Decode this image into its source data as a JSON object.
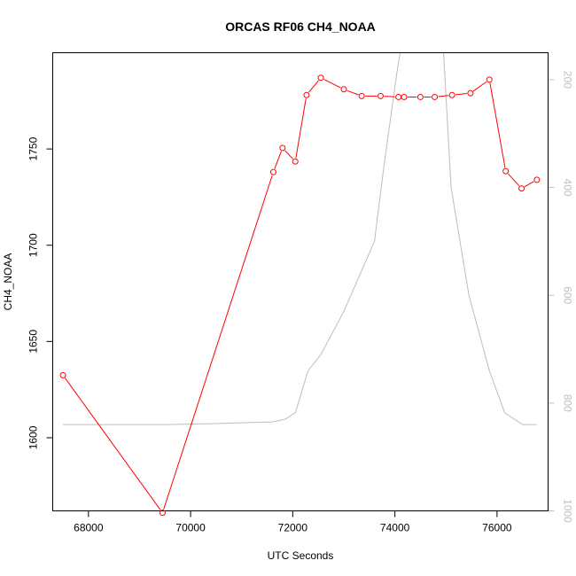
{
  "chart_data": {
    "type": "line",
    "title": "ORCAS RF06 CH4_NOAA",
    "xlabel": "UTC Seconds",
    "ylabel": "CH4_NOAA",
    "xlim": [
      67300,
      77000
    ],
    "ylim": [
      1562,
      1800
    ],
    "y2lim": [
      1000,
      150
    ],
    "y2_reversed": true,
    "x_ticks": [
      68000,
      70000,
      72000,
      74000,
      76000
    ],
    "y_ticks": [
      1600,
      1650,
      1700,
      1750
    ],
    "y2_ticks": [
      200,
      400,
      600,
      800,
      1000
    ],
    "grid": false,
    "series": [
      {
        "color": "#ff0000",
        "marker": "open-circle",
        "axis": "left",
        "x": [
          67500,
          69450,
          71620,
          71800,
          72050,
          72270,
          72550,
          73000,
          73350,
          73720,
          74070,
          74180,
          74500,
          74780,
          75120,
          75480,
          75850,
          76170,
          76480,
          76780
        ],
        "y": [
          1632.5,
          1561,
          1738,
          1750.5,
          1743.5,
          1778,
          1787,
          1781,
          1777.5,
          1777.5,
          1777,
          1777,
          1777,
          1777,
          1778,
          1779,
          1786,
          1738.5,
          1729.5,
          1734
        ]
      },
      {
        "color": "#bebebe",
        "marker": "none",
        "axis": "right",
        "x": [
          67500,
          69500,
          70500,
          71600,
          71850,
          72050,
          72300,
          72550,
          73000,
          73600,
          73800,
          74050,
          74200,
          74550,
          74900,
          75100,
          75450,
          75850,
          76150,
          76500,
          76780
        ],
        "y": [
          840,
          840,
          838,
          835,
          830,
          818,
          740,
          710,
          630,
          500,
          350,
          180,
          100,
          40,
          60,
          400,
          600,
          740,
          818,
          840,
          840
        ]
      }
    ]
  }
}
